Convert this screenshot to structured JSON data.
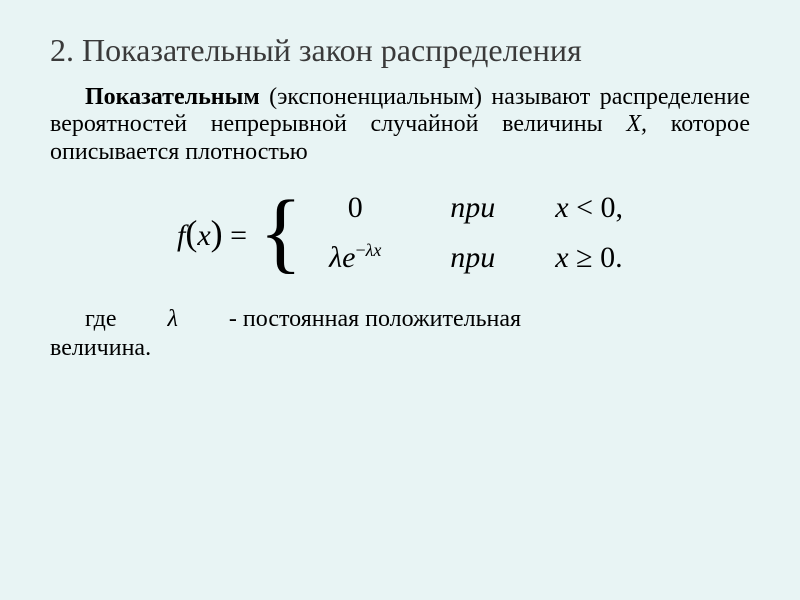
{
  "colors": {
    "background": "#e8f4f4",
    "title": "#3a3a3a",
    "text": "#000000"
  },
  "typography": {
    "family": "Times New Roman",
    "title_size": 32,
    "body_size": 24,
    "formula_size": 30
  },
  "title": "2. Показательный закон распределения",
  "definition": {
    "term": "Показательным",
    "paren": "(экспоненциальным)",
    "rest": "называют распределение вероятностей непрерывной случайной величины",
    "var": "X,",
    "tail": "которое описывается плотностью"
  },
  "formula": {
    "lhs": "f",
    "arg": "x",
    "eq": "=",
    "row1_left": "0",
    "row2_lambda": "λ",
    "row2_e": "e",
    "row2_exp_neg": "−",
    "row2_exp_lambda": "λ",
    "row2_exp_x": "x",
    "pri": "при",
    "row1_cond_x": "x",
    "row1_cond_lt": "<",
    "row1_cond_rhs": "0,",
    "row2_cond_x": "x",
    "row2_cond_ge": "≥",
    "row2_cond_rhs": "0."
  },
  "footer": {
    "gde": "где",
    "lambdaSym": "λ",
    "rest": "- постоянная положительная",
    "line2": "величина."
  }
}
